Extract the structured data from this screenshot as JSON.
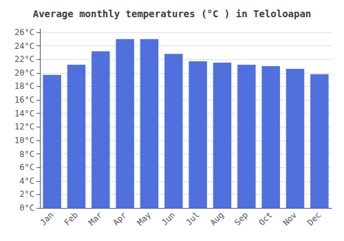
{
  "chart_data": {
    "type": "bar",
    "title": "Average monthly temperatures (°C ) in Teloloapan",
    "categories": [
      "Jan",
      "Feb",
      "Mar",
      "Apr",
      "May",
      "Jun",
      "Jul",
      "Aug",
      "Sep",
      "Oct",
      "Nov",
      "Dec"
    ],
    "values": [
      19.7,
      21.2,
      23.2,
      25.0,
      25.0,
      22.8,
      21.7,
      21.5,
      21.2,
      21.0,
      20.6,
      19.8
    ],
    "ylim": [
      0,
      26.5
    ],
    "yticks": [
      {
        "value": 0,
        "label": "0°C"
      },
      {
        "value": 2,
        "label": "2°C"
      },
      {
        "value": 4,
        "label": "4°C"
      },
      {
        "value": 6,
        "label": "6°C"
      },
      {
        "value": 8,
        "label": "8°C"
      },
      {
        "value": 10,
        "label": "10°C"
      },
      {
        "value": 12,
        "label": "12°C"
      },
      {
        "value": 14,
        "label": "14°C"
      },
      {
        "value": 16,
        "label": "16°C"
      },
      {
        "value": 18,
        "label": "18°C"
      },
      {
        "value": 20,
        "label": "20°C"
      },
      {
        "value": 22,
        "label": "22°C"
      },
      {
        "value": 24,
        "label": "24°C"
      },
      {
        "value": 26,
        "label": "26°C"
      }
    ],
    "grid": true
  }
}
